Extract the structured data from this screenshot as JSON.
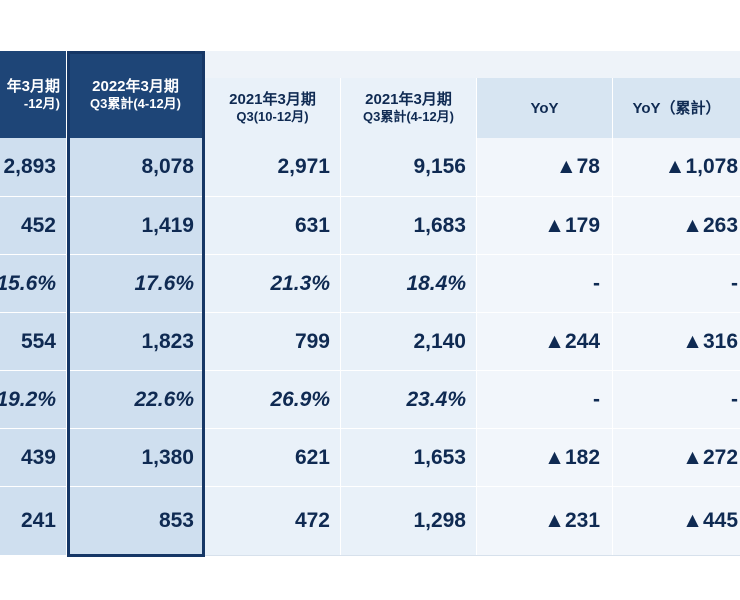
{
  "headers": {
    "col_a": {
      "line1": "年3月期",
      "line2": "-12月)"
    },
    "col_b": {
      "line1": "2022年3月期",
      "line2": "Q3累計(4-12月)"
    },
    "col_c": {
      "line1": "2021年3月期",
      "line2": "Q3(10-12月)"
    },
    "col_d": {
      "line1": "2021年3月期",
      "line2": "Q3累計(4-12月)"
    },
    "col_e": {
      "line1": "YoY"
    },
    "col_f": {
      "line1": "YoY（累計）"
    }
  },
  "rows": [
    {
      "a": "2,893",
      "b": "8,078",
      "c": "2,971",
      "d": "9,156",
      "e": "▲78",
      "f": "▲1,078"
    },
    {
      "a": "452",
      "b": "1,419",
      "c": "631",
      "d": "1,683",
      "e": "▲179",
      "f": "▲263"
    },
    {
      "a": "15.6%",
      "b": "17.6%",
      "c": "21.3%",
      "d": "18.4%",
      "e": "-",
      "f": "-"
    },
    {
      "a": "554",
      "b": "1,823",
      "c": "799",
      "d": "2,140",
      "e": "▲244",
      "f": "▲316"
    },
    {
      "a": "19.2%",
      "b": "22.6%",
      "c": "26.9%",
      "d": "23.4%",
      "e": "-",
      "f": "-"
    },
    {
      "a": "439",
      "b": "1,380",
      "c": "621",
      "d": "1,653",
      "e": "▲182",
      "f": "▲272"
    },
    {
      "a": "241",
      "b": "853",
      "c": "472",
      "d": "1,298",
      "e": "▲231",
      "f": "▲445"
    }
  ],
  "colors": {
    "dark_header": "#1e4577",
    "frame": "#163766",
    "current_period_bg": "#cfdfef",
    "prior_period_bg": "#e9f1f9",
    "yoy_bg": "#f2f6fb",
    "text": "#0f2a52"
  }
}
